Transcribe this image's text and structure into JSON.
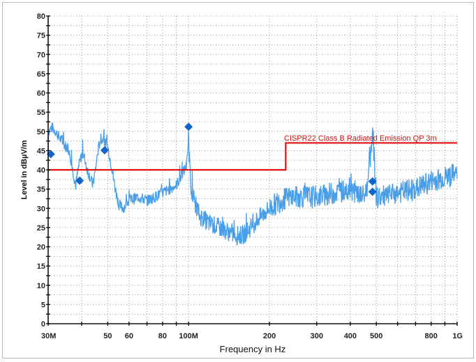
{
  "chart_data": {
    "type": "line",
    "xlabel": "Frequency in Hz",
    "ylabel": "Level in dBµV/m",
    "x_scale": "log",
    "xlim_hz": [
      30000000,
      1000000000
    ],
    "ylim": [
      0,
      80
    ],
    "grid": true,
    "y_ticks": [
      0,
      5,
      10,
      15,
      20,
      25,
      30,
      35,
      40,
      45,
      50,
      55,
      60,
      65,
      70,
      75,
      80
    ],
    "x_ticks": [
      {
        "value_mhz": 30,
        "label": "30M"
      },
      {
        "value_mhz": 50,
        "label": "50"
      },
      {
        "value_mhz": 60,
        "label": "60"
      },
      {
        "value_mhz": 80,
        "label": "80"
      },
      {
        "value_mhz": 100,
        "label": "100M"
      },
      {
        "value_mhz": 200,
        "label": "200"
      },
      {
        "value_mhz": 300,
        "label": "300"
      },
      {
        "value_mhz": 400,
        "label": "400"
      },
      {
        "value_mhz": 500,
        "label": "500"
      },
      {
        "value_mhz": 800,
        "label": "800"
      },
      {
        "value_mhz": 1000,
        "label": "1G"
      }
    ],
    "x_gridlines_mhz": [
      30,
      40,
      50,
      60,
      70,
      80,
      90,
      100,
      200,
      300,
      400,
      500,
      600,
      700,
      800,
      900,
      1000
    ],
    "series": [
      {
        "kind": "trace",
        "color": "#4a9ee8",
        "points_mhz_db": [
          [
            30,
            50
          ],
          [
            31,
            51
          ],
          [
            32,
            50
          ],
          [
            34,
            47
          ],
          [
            36,
            45
          ],
          [
            37,
            40
          ],
          [
            38,
            36
          ],
          [
            39,
            41
          ],
          [
            40,
            44
          ],
          [
            41,
            43
          ],
          [
            42,
            40
          ],
          [
            43,
            38
          ],
          [
            44,
            36
          ],
          [
            45,
            40
          ],
          [
            46,
            45
          ],
          [
            47,
            48
          ],
          [
            48,
            48
          ],
          [
            50,
            46
          ],
          [
            52,
            40
          ],
          [
            53,
            36
          ],
          [
            55,
            31
          ],
          [
            57,
            30
          ],
          [
            60,
            32
          ],
          [
            65,
            33
          ],
          [
            70,
            32
          ],
          [
            75,
            33
          ],
          [
            80,
            34
          ],
          [
            85,
            35
          ],
          [
            90,
            36
          ],
          [
            95,
            39
          ],
          [
            98,
            41
          ],
          [
            99.5,
            44
          ],
          [
            100,
            51
          ],
          [
            100.5,
            44
          ],
          [
            102,
            36
          ],
          [
            105,
            32
          ],
          [
            110,
            28
          ],
          [
            120,
            26
          ],
          [
            130,
            25
          ],
          [
            140,
            24
          ],
          [
            150,
            23
          ],
          [
            160,
            23
          ],
          [
            170,
            25
          ],
          [
            180,
            27
          ],
          [
            200,
            30
          ],
          [
            220,
            32
          ],
          [
            240,
            33
          ],
          [
            260,
            33
          ],
          [
            300,
            33
          ],
          [
            350,
            34
          ],
          [
            400,
            35
          ],
          [
            450,
            33
          ],
          [
            465,
            36
          ],
          [
            470,
            45
          ],
          [
            475,
            40
          ],
          [
            480,
            48
          ],
          [
            485,
            51
          ],
          [
            490,
            44
          ],
          [
            500,
            33
          ],
          [
            550,
            33
          ],
          [
            600,
            34
          ],
          [
            700,
            35
          ],
          [
            800,
            37
          ],
          [
            900,
            38
          ],
          [
            1000,
            39
          ]
        ]
      },
      {
        "name": "CISPR22 Class B Radiated Emission QP 3m",
        "kind": "limit",
        "color": "#e01010",
        "points_mhz_db": [
          [
            30,
            40
          ],
          [
            230,
            40
          ],
          [
            230,
            47
          ],
          [
            1000,
            47
          ]
        ]
      },
      {
        "kind": "markers",
        "color": "#1565c8",
        "points_mhz_db": [
          [
            30.7,
            44.1
          ],
          [
            39.3,
            37.2
          ],
          [
            48.7,
            45.1
          ],
          [
            100,
            51.2
          ],
          [
            484,
            37.0
          ],
          [
            484,
            34.3
          ]
        ]
      }
    ],
    "limit_label": "CISPR22 Class  B Radiated Emission  QP  3m"
  }
}
